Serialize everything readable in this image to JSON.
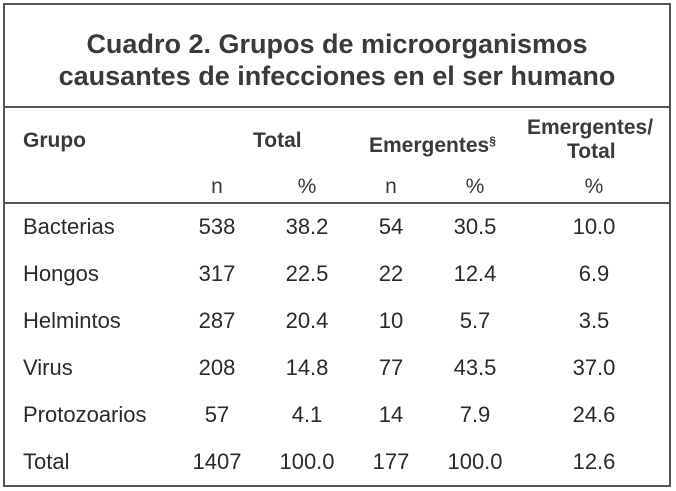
{
  "title": {
    "line1": "Cuadro 2. Grupos de microorganismos",
    "line2": "causantes de infecciones en el ser humano"
  },
  "headers": {
    "grupo": "Grupo",
    "total": "Total",
    "emergentes": "Emergentes",
    "emergentes_mark": "§",
    "emergentes_total_line1": "Emergentes/",
    "emergentes_total_line2": "Total"
  },
  "subheaders": {
    "total_n": "n",
    "total_pct": "%",
    "emerg_n": "n",
    "emerg_pct": "%",
    "ratio_pct": "%"
  },
  "rows": [
    {
      "grupo": "Bacterias",
      "total_n": "538",
      "total_pct": "38.2",
      "emerg_n": "54",
      "emerg_pct": "30.5",
      "ratio_pct": "10.0"
    },
    {
      "grupo": "Hongos",
      "total_n": "317",
      "total_pct": "22.5",
      "emerg_n": "22",
      "emerg_pct": "12.4",
      "ratio_pct": "6.9"
    },
    {
      "grupo": "Helmintos",
      "total_n": "287",
      "total_pct": "20.4",
      "emerg_n": "10",
      "emerg_pct": "5.7",
      "ratio_pct": "3.5"
    },
    {
      "grupo": "Virus",
      "total_n": "208",
      "total_pct": "14.8",
      "emerg_n": "77",
      "emerg_pct": "43.5",
      "ratio_pct": "37.0"
    },
    {
      "grupo": "Protozoarios",
      "total_n": "57",
      "total_pct": "4.1",
      "emerg_n": "14",
      "emerg_pct": "7.9",
      "ratio_pct": "24.6"
    },
    {
      "grupo": "Total",
      "total_n": "1407",
      "total_pct": "100.0",
      "emerg_n": "177",
      "emerg_pct": "100.0",
      "ratio_pct": "12.6"
    }
  ]
}
